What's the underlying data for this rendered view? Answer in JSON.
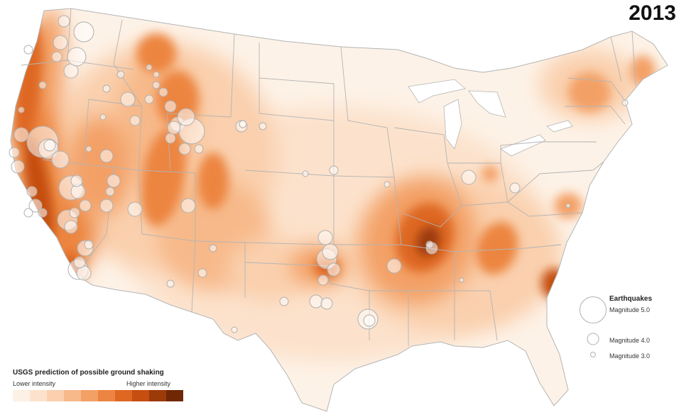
{
  "year": "2013",
  "colors": {
    "scale": [
      "#fdf0e4",
      "#fce2cc",
      "#fad0ae",
      "#f7b98a",
      "#f3a066",
      "#ec8541",
      "#de6722",
      "#c54e10",
      "#9c3a08",
      "#6f2704"
    ],
    "land": "#fdf2e7",
    "border": "#b4b4b4",
    "water": "#ffffff",
    "circle_stroke": "#b0b0b0",
    "circle_fill": "#ffffff"
  },
  "shaking_legend": {
    "title": "USGS prediction of possible ground shaking",
    "low_label": "Lower intensity",
    "high_label": "Higher intensity"
  },
  "earthquake_legend": {
    "title": "Earthquakes",
    "items": [
      {
        "label": "Magnitude 5.0",
        "magnitude": 5.0
      },
      {
        "label": "Magnitude 4.0",
        "magnitude": 4.0
      },
      {
        "label": "Magnitude 3.0",
        "magnitude": 3.0
      }
    ]
  }
}
